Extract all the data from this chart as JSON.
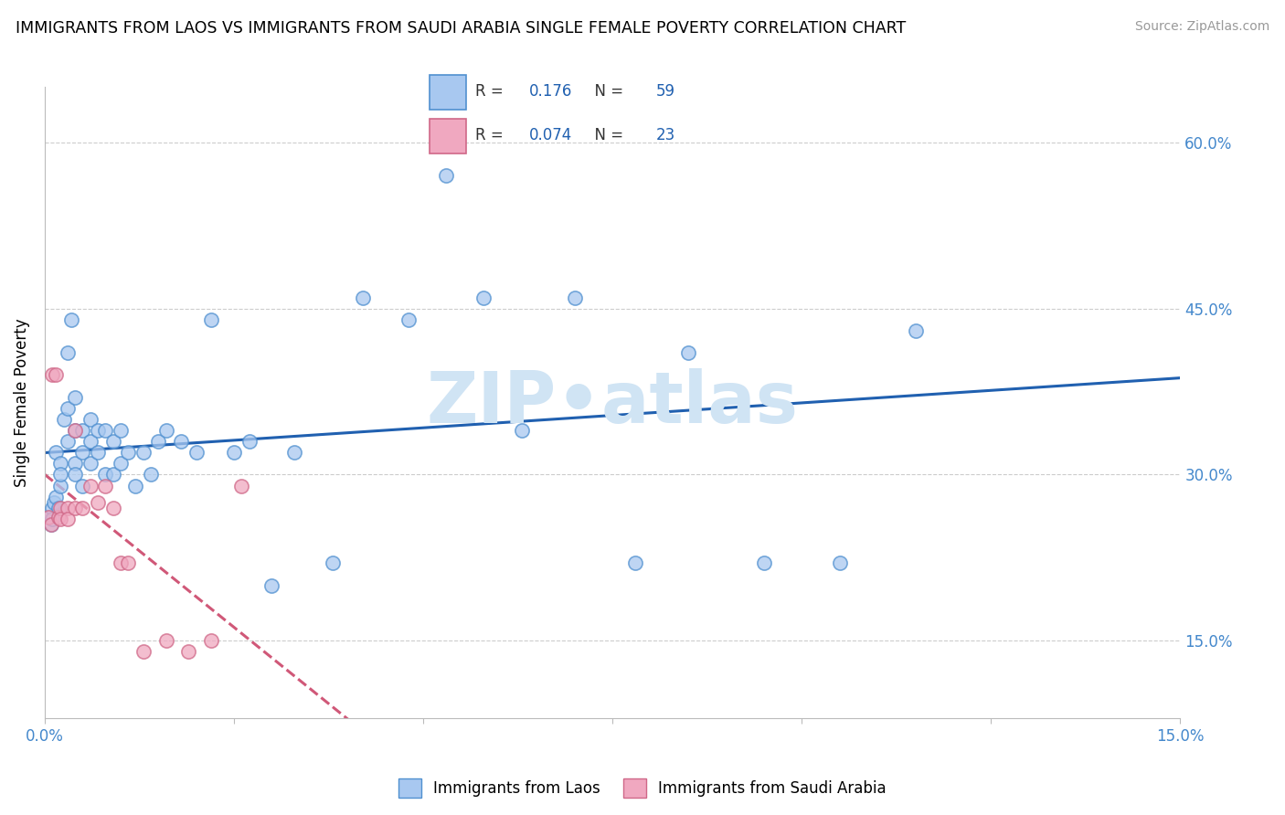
{
  "title": "IMMIGRANTS FROM LAOS VS IMMIGRANTS FROM SAUDI ARABIA SINGLE FEMALE POVERTY CORRELATION CHART",
  "source": "Source: ZipAtlas.com",
  "ylabel": "Single Female Poverty",
  "xlim": [
    0.0,
    0.15
  ],
  "ylim": [
    0.08,
    0.65
  ],
  "yticks": [
    0.15,
    0.3,
    0.45,
    0.6
  ],
  "ytick_labels": [
    "15.0%",
    "30.0%",
    "45.0%",
    "60.0%"
  ],
  "xtick_positions": [
    0.0,
    0.025,
    0.05,
    0.075,
    0.1,
    0.125,
    0.15
  ],
  "xtick_labels": [
    "0.0%",
    "",
    "",
    "",
    "",
    "",
    "15.0%"
  ],
  "laos_color": "#A8C8F0",
  "saudi_color": "#F0A8C0",
  "laos_edge_color": "#5090D0",
  "saudi_edge_color": "#D06888",
  "laos_line_color": "#2060B0",
  "saudi_line_color": "#D05878",
  "R_laos": 0.176,
  "N_laos": 59,
  "R_saudi": 0.074,
  "N_saudi": 23,
  "laos_x": [
    0.0005,
    0.0008,
    0.001,
    0.001,
    0.0012,
    0.0015,
    0.0015,
    0.0018,
    0.002,
    0.002,
    0.002,
    0.0025,
    0.003,
    0.003,
    0.003,
    0.0035,
    0.004,
    0.004,
    0.004,
    0.004,
    0.005,
    0.005,
    0.005,
    0.006,
    0.006,
    0.006,
    0.007,
    0.007,
    0.008,
    0.008,
    0.009,
    0.009,
    0.01,
    0.01,
    0.011,
    0.012,
    0.013,
    0.014,
    0.015,
    0.016,
    0.018,
    0.02,
    0.022,
    0.025,
    0.027,
    0.03,
    0.033,
    0.038,
    0.042,
    0.048,
    0.053,
    0.058,
    0.063,
    0.07,
    0.078,
    0.085,
    0.095,
    0.105,
    0.115
  ],
  "laos_y": [
    0.262,
    0.255,
    0.27,
    0.26,
    0.275,
    0.28,
    0.32,
    0.27,
    0.29,
    0.31,
    0.3,
    0.35,
    0.33,
    0.36,
    0.41,
    0.44,
    0.37,
    0.34,
    0.31,
    0.3,
    0.34,
    0.32,
    0.29,
    0.35,
    0.33,
    0.31,
    0.34,
    0.32,
    0.34,
    0.3,
    0.33,
    0.3,
    0.34,
    0.31,
    0.32,
    0.29,
    0.32,
    0.3,
    0.33,
    0.34,
    0.33,
    0.32,
    0.44,
    0.32,
    0.33,
    0.2,
    0.32,
    0.22,
    0.46,
    0.44,
    0.57,
    0.46,
    0.34,
    0.46,
    0.22,
    0.41,
    0.22,
    0.22,
    0.43
  ],
  "saudi_x": [
    0.0005,
    0.0008,
    0.001,
    0.0015,
    0.0018,
    0.002,
    0.002,
    0.003,
    0.003,
    0.004,
    0.004,
    0.005,
    0.006,
    0.007,
    0.008,
    0.009,
    0.01,
    0.011,
    0.013,
    0.016,
    0.019,
    0.022,
    0.026
  ],
  "saudi_y": [
    0.262,
    0.255,
    0.39,
    0.39,
    0.262,
    0.27,
    0.26,
    0.27,
    0.26,
    0.34,
    0.27,
    0.27,
    0.29,
    0.275,
    0.29,
    0.27,
    0.22,
    0.22,
    0.14,
    0.15,
    0.14,
    0.15,
    0.29
  ],
  "grid_color": "#CCCCCC",
  "tick_color": "#4488CC",
  "axis_color": "#BBBBBB",
  "watermark_color": "#D0E4F4",
  "legend_text_color_r": "#3366BB",
  "legend_text_color_n": "#2255AA"
}
